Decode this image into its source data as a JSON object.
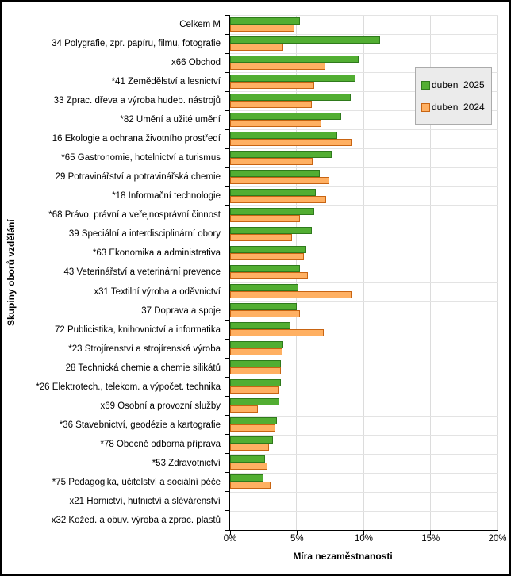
{
  "chart_data": {
    "type": "bar",
    "orientation": "horizontal",
    "xlabel": "Míra nezaměstnanosti",
    "ylabel": "Skupiny oborů vzdělání",
    "xlim": [
      0,
      20
    ],
    "x_ticks": [
      "0%",
      "5%",
      "10%",
      "15%",
      "20%"
    ],
    "x_tick_values": [
      0,
      5,
      10,
      15,
      20
    ],
    "grid": true,
    "legend_position": "inside-top-right",
    "categories": [
      "Celkem M",
      "34 Polygrafie, zpr. papíru, filmu, fotografie",
      "x66 Obchod",
      "*41 Zemědělství a lesnictví",
      "33 Zprac. dřeva a výroba hudeb. nástrojů",
      "*82 Umění a užité umění",
      "16 Ekologie a ochrana životního prostředí",
      "*65 Gastronomie, hotelnictví a turismus",
      "29 Potravinářství a potravinářská chemie",
      "*18 Informační technologie",
      "*68 Právo, právní a veřejnosprávní činnost",
      "39 Speciální a interdisciplinární obory",
      "*63 Ekonomika a administrativa",
      "43 Veterinářství a veterinární prevence",
      "x31 Textilní výroba a oděvnictví",
      "37 Doprava a spoje",
      "72 Publicistika, knihovnictví a informatika",
      "*23 Strojírenství a strojírenská výroba",
      "28 Technická chemie a chemie silikátů",
      "*26 Elektrotech., telekom. a výpočet. technika",
      "x69 Osobní a provozní služby",
      "*36 Stavebnictví, geodézie a kartografie",
      "*78 Obecně odborná příprava",
      "*53 Zdravotnictví",
      "*75 Pedagogika, učitelství a sociální péče",
      "x21 Hornictví, hutnictví a slévárenství",
      "x32 Kožed. a obuv. výroba a zprac. plastů"
    ],
    "series": [
      {
        "name": "duben  2025",
        "color": "#52AE32",
        "border_color": "#2F7A1C",
        "values": [
          5.2,
          11.2,
          9.6,
          9.4,
          9.0,
          8.3,
          8.0,
          7.6,
          6.7,
          6.4,
          6.3,
          6.1,
          5.7,
          5.2,
          5.1,
          5.0,
          4.5,
          4.0,
          3.8,
          3.8,
          3.7,
          3.5,
          3.2,
          2.6,
          2.5,
          0,
          0
        ]
      },
      {
        "name": "duben  2024",
        "color": "#FFB062",
        "border_color": "#C86412",
        "values": [
          4.8,
          4.0,
          7.1,
          6.3,
          6.1,
          6.8,
          9.1,
          6.2,
          7.4,
          7.2,
          5.2,
          4.6,
          5.5,
          5.8,
          9.1,
          5.2,
          7.0,
          3.9,
          3.8,
          3.6,
          2.1,
          3.4,
          2.9,
          2.8,
          3.0,
          0,
          0
        ]
      }
    ]
  },
  "colors": {
    "gridline": "#e0e0e0",
    "axis": "#000000",
    "legend_background": "#ebebeb",
    "legend_border": "#ababab",
    "frame_border": "#000000"
  }
}
